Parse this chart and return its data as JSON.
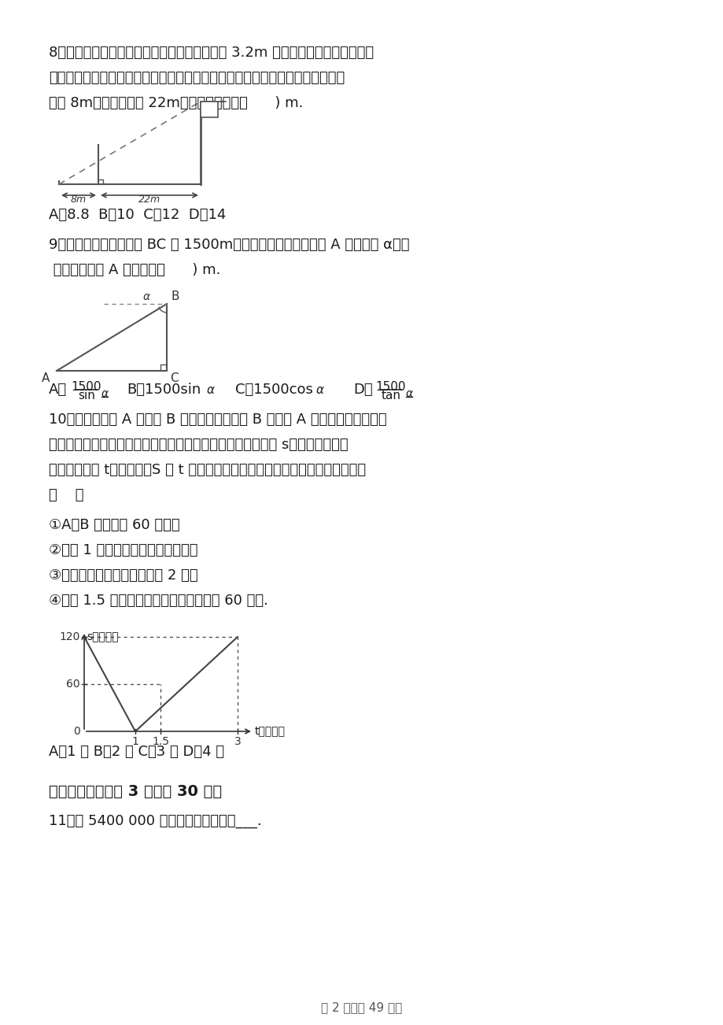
{
  "background_color": "#ffffff",
  "page_width": 9.2,
  "page_height": 13.02,
  "q8_text1": "8．如图，为测量学校旗杆的高度，小东用长为 3.2m 的竹竿作测量工具，移动竹",
  "q8_text2": "竿，使竹竿顶端与旗杆顶端的影子恰好落在地面的同一点，此时，竹竿与这一点",
  "q8_text3": "相距 8m，与旗杆相距 22m，则旗杆的高为（      ) m.",
  "q8_answer": "A．8.8  B．10  C．12  D．14",
  "q9_text1": "9．如图，飞机飞行高度 BC 为 1500m，飞行员看地平面指挥塔 A 的俯角为 α，则",
  "q9_text2": " 飞机与指挥塔 A 的距离为（      ) m.",
  "q10_text1": "10．一辆货车从 A 地开往 B 地，一辆小汽车从 B 地开往 A 地．同时出发，都匀",
  "q10_text2": "速行驶，各自到达终点后停止．设货车、小汽车之间的距离为 s（千米），货车",
  "q10_text3": "行驶的时间为 t（小时），S 与 t 之间的函数关系如图所示．下列说法中正确的有",
  "q10_text4": "（    ）",
  "q10_item1": "①A、B 两地相距 60 千米；",
  "q10_item2": "②出发 1 小时，货车与小汽车相遇；",
  "q10_item3": "③小汽车的速度是货车速度的 2 倍；",
  "q10_item4": "④出发 1.5 小时，小汽车比货车多行驶了 60 千米.",
  "q10_answer": "A．1 个 B．2 个 C．3 个 D．4 个",
  "section2_title": "二、填空题（每题 3 分，共 30 分）",
  "q11_text": "11．将 5400 000 用科学记数法表示为___.",
  "page_footer": "第 2 页（共 49 页）"
}
